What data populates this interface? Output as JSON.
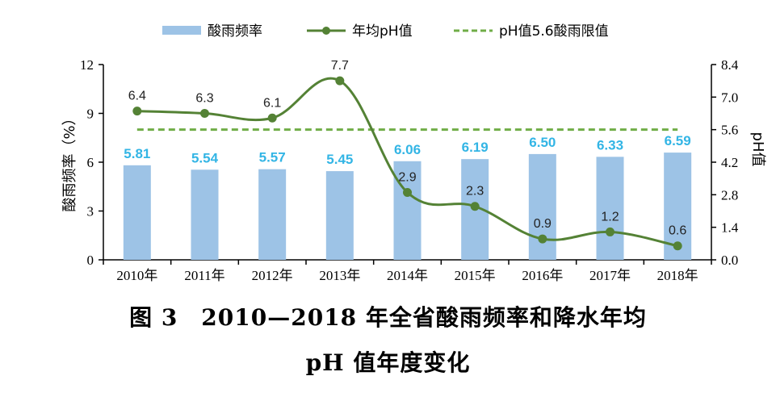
{
  "chart_data": {
    "type": "bar",
    "categories": [
      "2010年",
      "2011年",
      "2012年",
      "2013年",
      "2014年",
      "2015年",
      "2016年",
      "2017年",
      "2018年"
    ],
    "series": [
      {
        "name": "酸雨频率",
        "type": "bar",
        "axis": "left",
        "values": [
          5.81,
          5.54,
          5.57,
          5.45,
          6.06,
          6.19,
          6.5,
          6.33,
          6.59
        ],
        "labels": [
          "5.81",
          "5.54",
          "5.57",
          "5.45",
          "6.06",
          "6.19",
          "6.50",
          "6.33",
          "6.59"
        ]
      },
      {
        "name": "年均pH值",
        "type": "line",
        "axis": "right",
        "values": [
          6.4,
          6.3,
          6.1,
          7.7,
          2.9,
          2.3,
          0.9,
          1.2,
          0.6
        ],
        "labels": [
          "6.4",
          "6.3",
          "6.1",
          "7.7",
          "2.9",
          "2.3",
          "0.9",
          "1.2",
          "0.6"
        ]
      },
      {
        "name": "pH值5.6酸雨限值",
        "type": "line",
        "style": "dashed",
        "axis": "right",
        "values": [
          5.6,
          5.6,
          5.6,
          5.6,
          5.6,
          5.6,
          5.6,
          5.6,
          5.6
        ]
      }
    ],
    "y_left": {
      "label": "酸雨频率（%）",
      "ylim": [
        0,
        12
      ],
      "ticks": [
        "0",
        "3",
        "6",
        "9",
        "12"
      ]
    },
    "y_right": {
      "label": "pH值",
      "ylim": [
        0,
        8.4
      ],
      "ticks": [
        "0.0",
        "1.4",
        "2.8",
        "4.2",
        "5.6",
        "7.0",
        "8.4"
      ]
    },
    "legend_position": "top",
    "grid": false,
    "colors": {
      "bar": "#9dc3e6",
      "line": "#548235",
      "dashed": "#70ad47",
      "bar_label": "#33b5e5"
    }
  },
  "caption": {
    "line1": "图 3　2010—2018 年全省酸雨频率和降水年均",
    "line2": "pH 值年度变化"
  }
}
